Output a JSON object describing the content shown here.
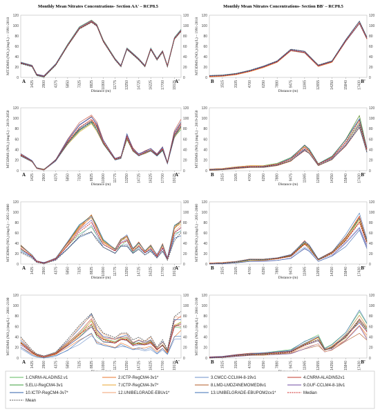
{
  "chart_data": {
    "type": "line",
    "x_label": "Distance (m)",
    "y_range": [
      0,
      120
    ],
    "y_ticks": [
      0,
      20,
      40,
      60,
      80,
      100,
      120
    ],
    "grid": false,
    "legend_position": "bottom",
    "series_names": [
      "1.CNRM-ALADIN52.v1",
      "2.ICTP-RegCM4-3v1*",
      "3.CMCC-CCLM4-8-19v1",
      "4.CNRM-ALADIN52v1",
      "5.ELU-RegCM4-3v1",
      "7.ICTP-RegCM4-3v7*",
      "8.LMD-LMDZ4NEMOMED8v1",
      "9.GUF-CCLM4-8-18v1",
      "10.ICTP-RegCM4-3v7*",
      "12.UNIBELGRADE-EBUv1*",
      "13.UNIBELGRADE-EBUPOM2cv1*",
      "Median",
      "Mean"
    ],
    "series_colors": [
      "#5cb85c",
      "#e8742c",
      "#6b8fc9",
      "#c0392b",
      "#3a9d3a",
      "#e8a32c",
      "#b05a24",
      "#6c4aa0",
      "#2f5faa",
      "#f0a070",
      "#3b6fb5",
      "#cc1f1f",
      "#555555"
    ],
    "sections": {
      "aa": {
        "title": "Monthly Mean Nitrates Concentrations- Section AA' – RCP8.5",
        "x_ticks": [
          "1425",
          "2900",
          "4375",
          "5850",
          "7325",
          "8825",
          "10300",
          "11775",
          "13250",
          "14725",
          "16225",
          "17700",
          "19175"
        ],
        "start_label": "A",
        "end_label": "A'"
      },
      "bb": {
        "title": "Monthly Mean Nitrates Concentrations- Section BB' – RCP8.5",
        "x_ticks": [
          "1515",
          "3105",
          "4700",
          "6290",
          "7880",
          "9475",
          "11065",
          "12655",
          "14250",
          "15840",
          "17430"
        ],
        "start_label": "B",
        "end_label": "B'"
      }
    },
    "periods": [
      "MT3DMS (NO₃) (mg/L) – 1991-2018",
      "MT3DMS (NO₃) (mg/L) – 2019-2050",
      "MT3DMS (NO₃) (mg/L) – 2051-2080",
      "MT3DMS (NO₃) (mg/L) – 2081-2100"
    ],
    "median_curves": {
      "aa": [
        [
          [
            0,
            28
          ],
          [
            1425,
            22
          ],
          [
            2000,
            5
          ],
          [
            2900,
            2
          ],
          [
            4375,
            25
          ],
          [
            5850,
            62
          ],
          [
            7325,
            95
          ],
          [
            8825,
            108
          ],
          [
            9500,
            100
          ],
          [
            10300,
            70
          ],
          [
            11775,
            35
          ],
          [
            12500,
            22
          ],
          [
            13250,
            55
          ],
          [
            14000,
            45
          ],
          [
            14725,
            35
          ],
          [
            15500,
            22
          ],
          [
            16225,
            55
          ],
          [
            17000,
            35
          ],
          [
            17700,
            50
          ],
          [
            18300,
            22
          ],
          [
            19175,
            75
          ],
          [
            20000,
            90
          ]
        ],
        [
          [
            0,
            30
          ],
          [
            1425,
            18
          ],
          [
            2000,
            5
          ],
          [
            2900,
            2
          ],
          [
            4375,
            20
          ],
          [
            5850,
            55
          ],
          [
            7325,
            82
          ],
          [
            8825,
            98
          ],
          [
            9500,
            85
          ],
          [
            10300,
            55
          ],
          [
            11775,
            22
          ],
          [
            12500,
            25
          ],
          [
            13250,
            65
          ],
          [
            14000,
            40
          ],
          [
            14725,
            30
          ],
          [
            15500,
            35
          ],
          [
            16225,
            40
          ],
          [
            17000,
            30
          ],
          [
            17700,
            42
          ],
          [
            18300,
            15
          ],
          [
            19175,
            70
          ],
          [
            20000,
            88
          ]
        ],
        [
          [
            0,
            30
          ],
          [
            1425,
            15
          ],
          [
            2000,
            5
          ],
          [
            2900,
            2
          ],
          [
            4375,
            10
          ],
          [
            5850,
            35
          ],
          [
            7325,
            62
          ],
          [
            8825,
            80
          ],
          [
            9500,
            60
          ],
          [
            10300,
            38
          ],
          [
            11775,
            25
          ],
          [
            12500,
            40
          ],
          [
            13250,
            45
          ],
          [
            14000,
            25
          ],
          [
            14725,
            35
          ],
          [
            15500,
            22
          ],
          [
            16225,
            30
          ],
          [
            17000,
            15
          ],
          [
            17700,
            32
          ],
          [
            18300,
            10
          ],
          [
            19175,
            60
          ],
          [
            20000,
            70
          ]
        ],
        [
          [
            0,
            28
          ],
          [
            1425,
            10
          ],
          [
            2000,
            5
          ],
          [
            2900,
            2
          ],
          [
            4375,
            8
          ],
          [
            5850,
            25
          ],
          [
            7325,
            45
          ],
          [
            8825,
            65
          ],
          [
            9500,
            45
          ],
          [
            10300,
            35
          ],
          [
            11775,
            28
          ],
          [
            12500,
            35
          ],
          [
            13250,
            35
          ],
          [
            14000,
            25
          ],
          [
            14725,
            28
          ],
          [
            15500,
            25
          ],
          [
            16225,
            30
          ],
          [
            17000,
            15
          ],
          [
            17700,
            25
          ],
          [
            18300,
            12
          ],
          [
            19175,
            60
          ],
          [
            20000,
            65
          ]
        ]
      ],
      "bb": [
        [
          [
            0,
            2
          ],
          [
            1515,
            3
          ],
          [
            3105,
            6
          ],
          [
            4700,
            12
          ],
          [
            6290,
            20
          ],
          [
            7880,
            30
          ],
          [
            9475,
            52
          ],
          [
            11065,
            48
          ],
          [
            12655,
            22
          ],
          [
            14250,
            30
          ],
          [
            15840,
            70
          ],
          [
            17430,
            105
          ],
          [
            18300,
            75
          ]
        ],
        [
          [
            0,
            2
          ],
          [
            1515,
            3
          ],
          [
            3105,
            6
          ],
          [
            4700,
            8
          ],
          [
            6290,
            8
          ],
          [
            7880,
            12
          ],
          [
            9475,
            22
          ],
          [
            11065,
            45
          ],
          [
            11600,
            38
          ],
          [
            12655,
            12
          ],
          [
            14250,
            25
          ],
          [
            15840,
            55
          ],
          [
            17430,
            95
          ],
          [
            18300,
            40
          ]
        ],
        [
          [
            0,
            1
          ],
          [
            1515,
            2
          ],
          [
            3105,
            4
          ],
          [
            4700,
            8
          ],
          [
            6290,
            8
          ],
          [
            7880,
            10
          ],
          [
            9475,
            15
          ],
          [
            11065,
            38
          ],
          [
            11600,
            30
          ],
          [
            12655,
            8
          ],
          [
            14250,
            20
          ],
          [
            15840,
            45
          ],
          [
            17430,
            80
          ],
          [
            18300,
            40
          ]
        ],
        [
          [
            0,
            1
          ],
          [
            1515,
            2
          ],
          [
            3105,
            5
          ],
          [
            4700,
            7
          ],
          [
            6290,
            8
          ],
          [
            7880,
            10
          ],
          [
            9475,
            12
          ],
          [
            11065,
            25
          ],
          [
            12655,
            35
          ],
          [
            13400,
            15
          ],
          [
            14250,
            20
          ],
          [
            15840,
            40
          ],
          [
            17430,
            70
          ],
          [
            18300,
            50
          ]
        ]
      ]
    }
  }
}
